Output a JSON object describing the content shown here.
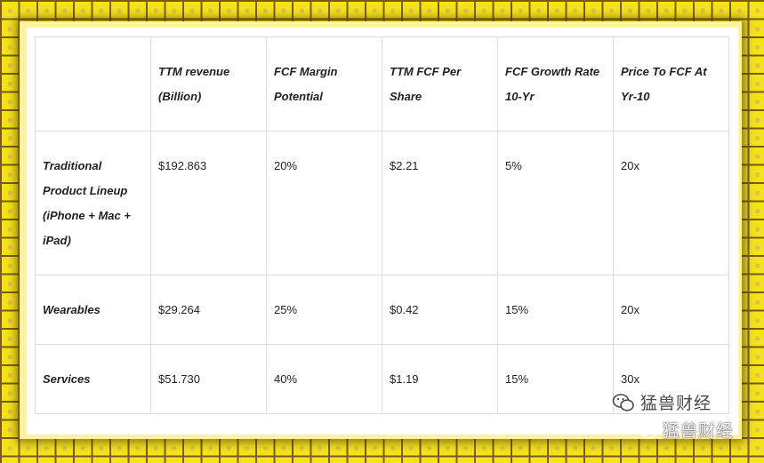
{
  "table": {
    "headers": [
      "",
      "TTM revenue (Billion)",
      "FCF Margin Potential",
      "TTM FCF Per Share",
      "FCF Growth Rate 10-Yr",
      "Price To FCF At Yr-10"
    ],
    "rows": [
      {
        "label": "Traditional Product Lineup (iPhone + Mac + iPad)",
        "cells": [
          "$192.863",
          "20%",
          "$2.21",
          "5%",
          "20x"
        ]
      },
      {
        "label": "Wearables",
        "cells": [
          "$29.264",
          "25%",
          "$0.42",
          "15%",
          "20x"
        ]
      },
      {
        "label": "Services",
        "cells": [
          "$51.730",
          "40%",
          "$1.19",
          "15%",
          "30x"
        ]
      }
    ]
  },
  "watermark": {
    "text": "猛兽财经",
    "icon": "wechat-logo-icon"
  },
  "colors": {
    "background": "#f3e41a",
    "grid": "#7a5a16",
    "border": "#dddddd"
  }
}
